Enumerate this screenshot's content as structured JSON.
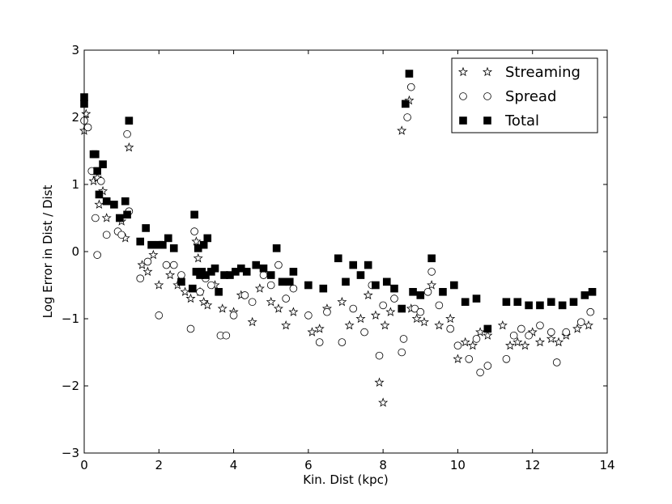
{
  "chart_data": {
    "type": "scatter",
    "title": "",
    "xlabel": "Kin. Dist (kpc)",
    "ylabel": "Log Error in Dist / Dist",
    "xlim": [
      0,
      14
    ],
    "ylim": [
      -3,
      3
    ],
    "xticks": [
      0,
      2,
      4,
      6,
      8,
      10,
      12,
      14
    ],
    "yticks": [
      -3,
      -2,
      -1,
      0,
      1,
      2,
      3
    ],
    "xtick_labels": [
      "0",
      "2",
      "4",
      "6",
      "8",
      "10",
      "12",
      "14"
    ],
    "ytick_labels": [
      "−3",
      "−2",
      "−1",
      "0",
      "1",
      "2",
      "3"
    ],
    "legend_position": "top-right",
    "series": [
      {
        "name": "Streaming",
        "marker": "star",
        "x": [
          0.0,
          0.05,
          0.25,
          0.35,
          0.4,
          0.5,
          0.6,
          1.0,
          1.1,
          1.2,
          1.55,
          1.7,
          1.85,
          2.0,
          2.3,
          2.5,
          2.7,
          2.85,
          3.0,
          3.05,
          3.1,
          3.2,
          3.3,
          3.5,
          3.7,
          4.0,
          4.2,
          4.5,
          4.7,
          5.0,
          5.2,
          5.4,
          5.6,
          6.1,
          6.3,
          6.5,
          6.9,
          7.1,
          7.4,
          7.6,
          7.8,
          7.9,
          8.0,
          8.05,
          8.2,
          8.5,
          8.7,
          8.75,
          8.9,
          9.1,
          9.3,
          9.5,
          9.8,
          10.0,
          10.2,
          10.4,
          10.6,
          10.8,
          11.2,
          11.4,
          11.6,
          11.8,
          12.0,
          12.2,
          12.5,
          12.7,
          12.9,
          13.2,
          13.5
        ],
        "y": [
          1.8,
          2.05,
          1.05,
          1.1,
          0.7,
          0.9,
          0.5,
          0.45,
          0.2,
          1.55,
          -0.2,
          -0.3,
          -0.05,
          -0.5,
          -0.35,
          -0.5,
          -0.6,
          -0.7,
          0.15,
          -0.1,
          -0.6,
          -0.75,
          -0.8,
          -0.5,
          -0.85,
          -0.9,
          -0.65,
          -1.05,
          -0.55,
          -0.75,
          -0.85,
          -1.1,
          -0.9,
          -1.2,
          -1.15,
          -0.85,
          -0.75,
          -1.1,
          -1.0,
          -0.65,
          -0.95,
          -1.95,
          -2.25,
          -1.1,
          -0.9,
          1.8,
          2.25,
          -0.85,
          -1.0,
          -1.05,
          -0.5,
          -1.1,
          -1.0,
          -1.6,
          -1.35,
          -1.4,
          -1.2,
          -1.25,
          -1.1,
          -1.4,
          -1.35,
          -1.4,
          -1.2,
          -1.35,
          -1.3,
          -1.35,
          -1.25,
          -1.15,
          -1.1
        ]
      },
      {
        "name": "Spread",
        "marker": "circle",
        "x": [
          0.0,
          0.1,
          0.2,
          0.3,
          0.35,
          0.45,
          0.6,
          0.9,
          1.0,
          1.15,
          1.2,
          1.5,
          1.7,
          2.0,
          2.2,
          2.4,
          2.6,
          2.85,
          2.95,
          3.1,
          3.25,
          3.4,
          3.65,
          3.8,
          4.0,
          4.3,
          4.5,
          4.8,
          5.0,
          5.2,
          5.4,
          5.6,
          6.0,
          6.3,
          6.5,
          6.9,
          7.2,
          7.5,
          7.7,
          7.9,
          8.0,
          8.3,
          8.5,
          8.55,
          8.65,
          8.75,
          8.85,
          9.0,
          9.2,
          9.3,
          9.5,
          9.8,
          10.0,
          10.3,
          10.5,
          10.6,
          10.8,
          11.3,
          11.5,
          11.7,
          11.9,
          12.2,
          12.5,
          12.65,
          12.9,
          13.3,
          13.55
        ],
        "y": [
          1.95,
          1.85,
          1.2,
          0.5,
          -0.05,
          1.05,
          0.25,
          0.3,
          0.25,
          1.75,
          0.6,
          -0.4,
          -0.15,
          -0.95,
          -0.2,
          -0.2,
          -0.35,
          -1.15,
          0.3,
          -0.6,
          -0.4,
          -0.5,
          -1.25,
          -1.25,
          -0.95,
          -0.65,
          -0.75,
          -0.35,
          -0.5,
          -0.2,
          -0.7,
          -0.55,
          -0.95,
          -1.35,
          -0.9,
          -1.35,
          -0.85,
          -1.2,
          -0.5,
          -1.55,
          -0.8,
          -0.7,
          -1.5,
          -1.3,
          2.0,
          2.45,
          -0.85,
          -0.9,
          -0.6,
          -0.3,
          -0.8,
          -1.15,
          -1.4,
          -1.6,
          -1.3,
          -1.8,
          -1.7,
          -1.6,
          -1.25,
          -1.15,
          -1.25,
          -1.1,
          -1.2,
          -1.65,
          -1.2,
          -1.05,
          -0.9
        ]
      },
      {
        "name": "Total",
        "marker": "square",
        "x": [
          0.0,
          0.0,
          0.25,
          0.3,
          0.35,
          0.4,
          0.5,
          0.6,
          0.8,
          0.95,
          1.1,
          1.15,
          1.2,
          1.5,
          1.65,
          1.8,
          2.0,
          2.1,
          2.25,
          2.4,
          2.6,
          2.9,
          2.95,
          3.0,
          3.05,
          3.1,
          3.15,
          3.2,
          3.25,
          3.3,
          3.4,
          3.5,
          3.6,
          3.75,
          3.9,
          4.05,
          4.2,
          4.35,
          4.6,
          4.8,
          5.0,
          5.15,
          5.3,
          5.5,
          5.6,
          6.0,
          6.4,
          6.8,
          7.0,
          7.2,
          7.4,
          7.6,
          7.8,
          8.1,
          8.3,
          8.5,
          8.6,
          8.7,
          8.8,
          9.0,
          9.3,
          9.6,
          9.9,
          10.2,
          10.5,
          10.8,
          11.3,
          11.6,
          11.9,
          12.2,
          12.5,
          12.8,
          13.1,
          13.4,
          13.6
        ],
        "y": [
          2.3,
          2.2,
          1.45,
          1.45,
          1.2,
          0.85,
          1.3,
          0.75,
          0.7,
          0.5,
          0.75,
          0.55,
          1.95,
          0.15,
          0.35,
          0.1,
          0.1,
          0.1,
          0.2,
          0.05,
          -0.45,
          -0.55,
          0.55,
          -0.3,
          0.05,
          -0.35,
          -0.3,
          0.1,
          -0.35,
          0.2,
          -0.3,
          -0.25,
          -0.6,
          -0.35,
          -0.35,
          -0.3,
          -0.25,
          -0.3,
          -0.2,
          -0.25,
          -0.35,
          0.05,
          -0.45,
          -0.45,
          -0.3,
          -0.5,
          -0.55,
          -0.1,
          -0.45,
          -0.2,
          -0.35,
          -0.2,
          -0.5,
          -0.45,
          -0.55,
          -0.85,
          2.2,
          2.65,
          -0.6,
          -0.65,
          -0.1,
          -0.6,
          -0.5,
          -0.75,
          -0.7,
          -1.15,
          -0.75,
          -0.75,
          -0.8,
          -0.8,
          -0.75,
          -0.8,
          -0.75,
          -0.65,
          -0.6
        ]
      }
    ]
  }
}
